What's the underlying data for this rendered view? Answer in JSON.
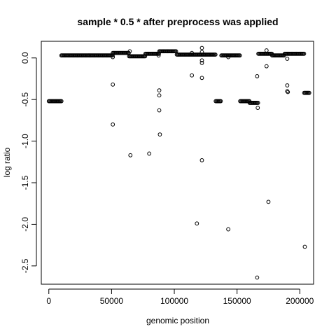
{
  "chart_data": {
    "type": "scatter",
    "title": "sample * 0.5 * after preprocess was applied",
    "xlabel": "genomic position",
    "ylabel": "log ratio",
    "xlim": [
      -6000,
      211000
    ],
    "ylim": [
      -2.72,
      0.2
    ],
    "x_ticks": [
      0,
      50000,
      100000,
      150000,
      200000
    ],
    "x_tick_labels": [
      "0",
      "50000",
      "100000",
      "150000",
      "200000"
    ],
    "y_ticks": [
      0.0,
      -0.5,
      -1.0,
      -1.5,
      -2.0,
      -2.5
    ],
    "y_tick_labels": [
      "0.0",
      "-0.5",
      "-1.0",
      "-1.5",
      "-2.0",
      "-2.5"
    ],
    "grid": false,
    "legend": "none",
    "marker": "open-circle",
    "color": "#000000",
    "segments": [
      {
        "x_start": 0,
        "x_end": 10500,
        "y": -0.52
      },
      {
        "x_start": 10000,
        "x_end": 51000,
        "y": 0.03
      },
      {
        "x_start": 51000,
        "x_end": 64000,
        "y": 0.06
      },
      {
        "x_start": 64000,
        "x_end": 77000,
        "y": 0.02
      },
      {
        "x_start": 77000,
        "x_end": 88000,
        "y": 0.05
      },
      {
        "x_start": 88000,
        "x_end": 102000,
        "y": 0.08
      },
      {
        "x_start": 102000,
        "x_end": 133000,
        "y": 0.04
      },
      {
        "x_start": 133000,
        "x_end": 137500,
        "y": -0.52
      },
      {
        "x_start": 137500,
        "x_end": 152500,
        "y": 0.03
      },
      {
        "x_start": 152500,
        "x_end": 160000,
        "y": -0.52
      },
      {
        "x_start": 160000,
        "x_end": 167000,
        "y": -0.54
      },
      {
        "x_start": 167000,
        "x_end": 178000,
        "y": 0.05
      },
      {
        "x_start": 178000,
        "x_end": 188000,
        "y": 0.03
      },
      {
        "x_start": 188000,
        "x_end": 203500,
        "y": 0.05
      },
      {
        "x_start": 203500,
        "x_end": 208000,
        "y": -0.42
      }
    ],
    "outliers": [
      {
        "x": 51000,
        "y": 0.01
      },
      {
        "x": 51000,
        "y": -0.32
      },
      {
        "x": 51000,
        "y": -0.8
      },
      {
        "x": 65000,
        "y": -1.17
      },
      {
        "x": 64500,
        "y": 0.08
      },
      {
        "x": 80000,
        "y": -1.15
      },
      {
        "x": 88000,
        "y": -0.39
      },
      {
        "x": 88000,
        "y": -0.45
      },
      {
        "x": 88000,
        "y": -0.63
      },
      {
        "x": 88500,
        "y": -0.92
      },
      {
        "x": 87500,
        "y": 0.03
      },
      {
        "x": 114000,
        "y": -0.21
      },
      {
        "x": 114000,
        "y": 0.06
      },
      {
        "x": 118000,
        "y": -1.99
      },
      {
        "x": 122000,
        "y": 0.12
      },
      {
        "x": 122000,
        "y": 0.07
      },
      {
        "x": 122000,
        "y": -0.03
      },
      {
        "x": 122000,
        "y": -0.06
      },
      {
        "x": 122000,
        "y": -0.24
      },
      {
        "x": 122000,
        "y": -1.23
      },
      {
        "x": 143000,
        "y": -2.06
      },
      {
        "x": 143000,
        "y": 0.01
      },
      {
        "x": 166000,
        "y": -0.22
      },
      {
        "x": 166500,
        "y": -0.6
      },
      {
        "x": 166000,
        "y": -2.64
      },
      {
        "x": 173500,
        "y": -0.1
      },
      {
        "x": 175000,
        "y": -1.73
      },
      {
        "x": 173500,
        "y": 0.09
      },
      {
        "x": 190000,
        "y": -0.33
      },
      {
        "x": 190000,
        "y": -0.4
      },
      {
        "x": 190500,
        "y": -0.41
      },
      {
        "x": 190000,
        "y": -0.01
      },
      {
        "x": 204000,
        "y": -2.27
      }
    ]
  }
}
